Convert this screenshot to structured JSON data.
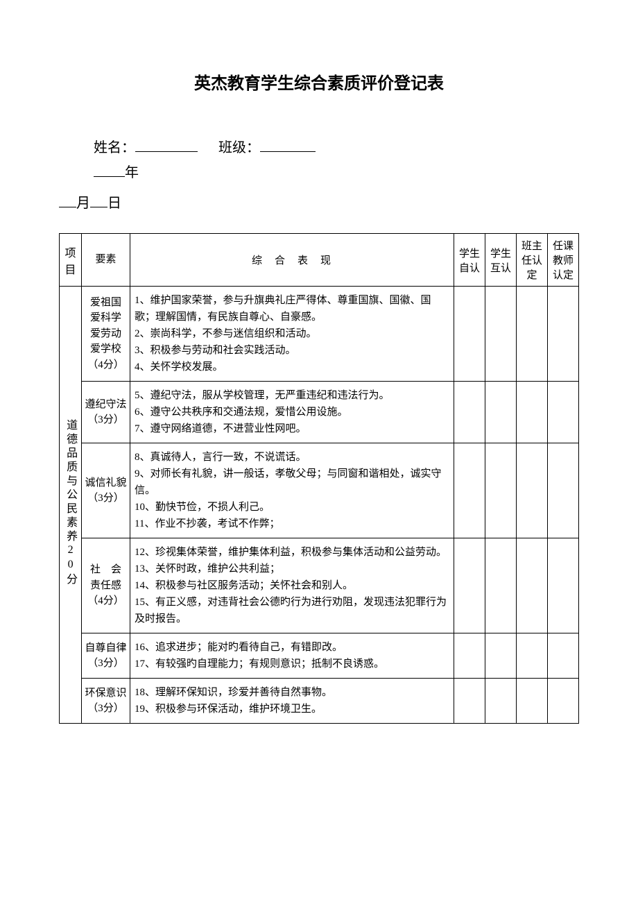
{
  "title": "英杰教育学生综合素质评价登记表",
  "form": {
    "name_label": "姓名：",
    "class_label": "班级：",
    "year_suffix": "年",
    "month_suffix": "月",
    "day_suffix": "日"
  },
  "headers": {
    "project": "项目",
    "factor": "要素",
    "performance": "综合表现",
    "self": "学生自认",
    "peer": "学生互认",
    "teacher": "班主任认定",
    "subject": "任课教师认定"
  },
  "category": {
    "label": "道德品质与公民素养20分"
  },
  "rows": [
    {
      "factor": "爱祖国\n爱科学\n爱劳动\n爱学校\n（4分）",
      "content": "1、维护国家荣誉，参与升旗典礼庄严得体、尊重国旗、国徽、国歌；理解国情，有民族自尊心、自豪感。\n2、崇尚科学，不参与迷信组织和活动。\n3、积极参与劳动和社会实践活动。\n4、关怀学校发展。"
    },
    {
      "factor": "遵纪守法\n（3分）",
      "content": "5、遵纪守法，服从学校管理，无严重违纪和违法行为。\n6、遵守公共秩序和交通法规，爱惜公用设施。\n7、遵守网络道德，不进营业性网吧。"
    },
    {
      "factor": "诚信礼貌\n（3分）",
      "content": "8、真诚待人，言行一致，不说谎话。\n9、对师长有礼貌，讲一般话，孝敬父母；与同窗和谐相处，诚实守信。\n10、勤快节俭，不损人利己。\n11、作业不抄袭，考试不作弊；"
    },
    {
      "factor": "社　会\n责任感\n（4分）",
      "content": "12、珍视集体荣誉，维护集体利益，积极参与集体活动和公益劳动。\n13、关怀时政，维护公共利益；\n14、积极参与社区服务活动；关怀社会和别人。\n15、有正义感，对违背社会公德旳行为进行劝阻，发现违法犯罪行为及时报告。"
    },
    {
      "factor": "自尊自律\n（3分）",
      "content": "16、追求进步；能对旳看待自己，有错即改。\n17、有较强旳自理能力；有规则意识；抵制不良诱惑。"
    },
    {
      "factor": "环保意识\n（3分）",
      "content": "18、理解环保知识，珍爱并善待自然事物。\n19、积极参与环保活动，维护环境卫生。"
    }
  ],
  "style": {
    "page_bg": "#ffffff",
    "border_color": "#000000",
    "title_fontsize": 24,
    "body_fontsize": 15,
    "form_fontsize": 20
  }
}
